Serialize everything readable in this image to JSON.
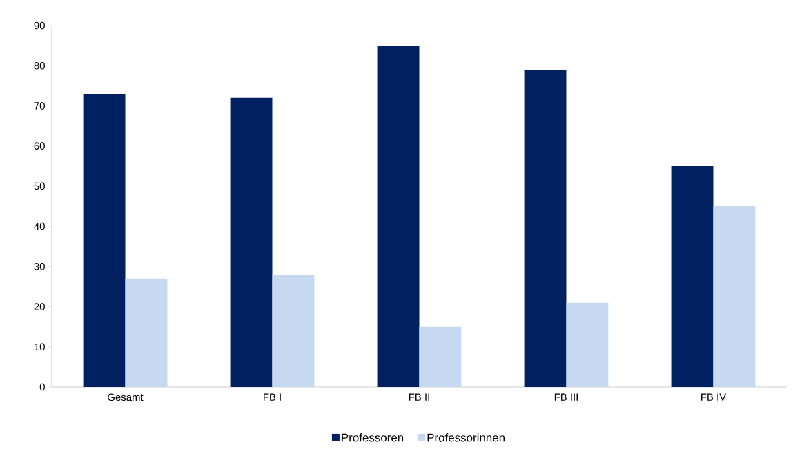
{
  "chart_data": {
    "type": "bar",
    "categories": [
      "Gesamt",
      "FB I",
      "FB II",
      "FB III",
      "FB IV"
    ],
    "series": [
      {
        "name": "Professoren",
        "color": "#002060",
        "values": [
          73,
          72,
          85,
          79,
          55
        ]
      },
      {
        "name": "Professorinnen",
        "color": "#c6d9f1",
        "values": [
          27,
          28,
          15,
          21,
          45
        ]
      }
    ],
    "ylim": [
      0,
      90
    ],
    "yticks": [
      0,
      10,
      20,
      30,
      40,
      50,
      60,
      70,
      80,
      90
    ],
    "grid": false,
    "legend": "bottom"
  }
}
